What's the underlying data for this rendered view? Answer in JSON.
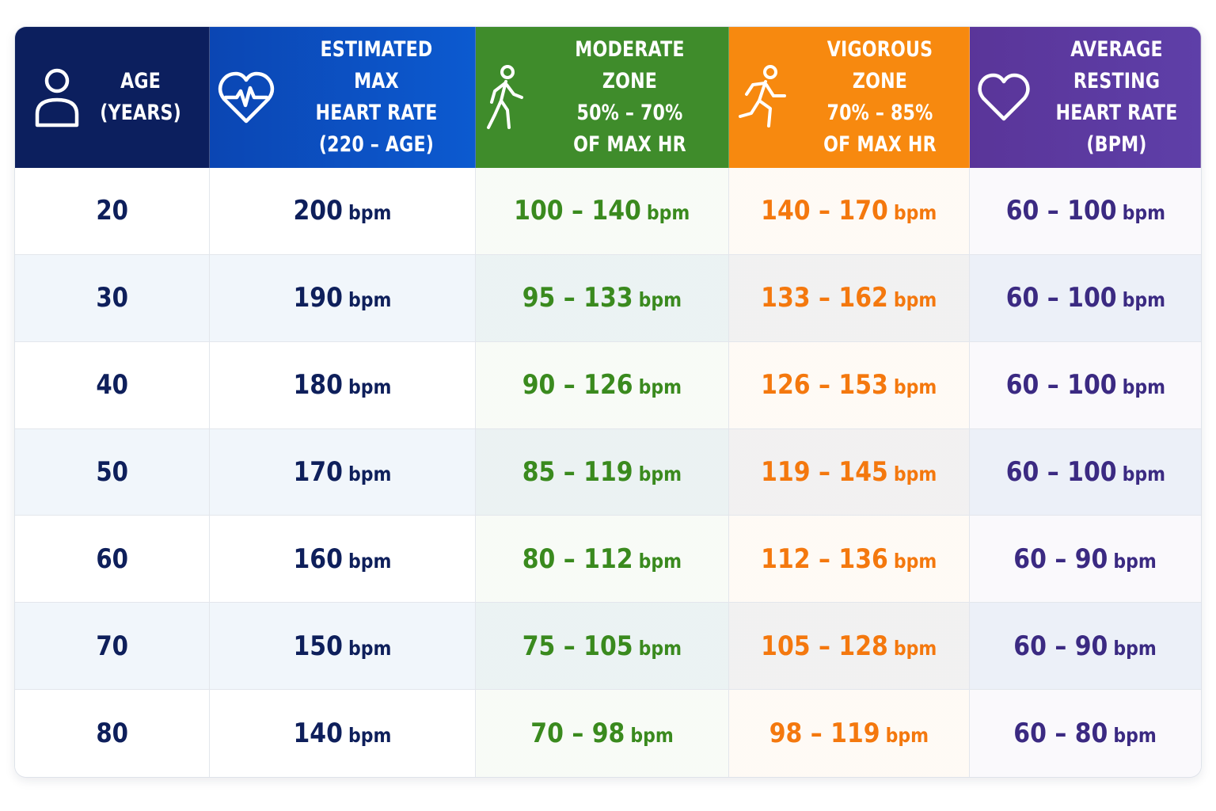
{
  "colors": {
    "age_header": "#0c1f5e",
    "max_header": "#0a4dbd",
    "moderate_header": "#3f8c2b",
    "vigorous_header": "#f7890f",
    "resting_header": "#5a3a9c",
    "row_stripe": "#f1f6fb",
    "moderate_text": "#3a8a1e",
    "vigorous_text": "#f4780e",
    "resting_text": "#3b2a82",
    "navy_text": "#0e1f5b"
  },
  "chart_data": {
    "type": "table",
    "columns": [
      {
        "key": "age",
        "icon": "person-icon",
        "lines": [
          "AGE",
          "(YEARS)"
        ]
      },
      {
        "key": "max",
        "icon": "heart-pulse-icon",
        "lines": [
          "ESTIMATED MAX",
          "HEART RATE",
          "(220 – AGE)"
        ]
      },
      {
        "key": "moderate",
        "icon": "walking-icon",
        "lines": [
          "MODERATE ZONE",
          "50% – 70%",
          "OF MAX HR"
        ]
      },
      {
        "key": "vigorous",
        "icon": "running-icon",
        "lines": [
          "VIGOROUS ZONE",
          "70% – 85%",
          "OF MAX HR"
        ]
      },
      {
        "key": "resting",
        "icon": "heart-outline-icon",
        "lines": [
          "AVERAGE RESTING",
          "HEART RATE",
          "(BPM)"
        ]
      }
    ],
    "unit": "bpm",
    "rows": [
      {
        "age": "20",
        "max": "200",
        "moderate": "100 – 140",
        "vigorous": "140 – 170",
        "resting": "60 – 100"
      },
      {
        "age": "30",
        "max": "190",
        "moderate": "95 – 133",
        "vigorous": "133 – 162",
        "resting": "60 – 100"
      },
      {
        "age": "40",
        "max": "180",
        "moderate": "90 – 126",
        "vigorous": "126 – 153",
        "resting": "60 – 100"
      },
      {
        "age": "50",
        "max": "170",
        "moderate": "85 – 119",
        "vigorous": "119 – 145",
        "resting": "60 – 100"
      },
      {
        "age": "60",
        "max": "160",
        "moderate": "80 – 112",
        "vigorous": "112 – 136",
        "resting": "60 – 90"
      },
      {
        "age": "70",
        "max": "150",
        "moderate": "75 – 105",
        "vigorous": "105 – 128",
        "resting": "60 – 90"
      },
      {
        "age": "80",
        "max": "140",
        "moderate": "70 – 98",
        "vigorous": "98 – 119",
        "resting": "60 – 80"
      }
    ]
  }
}
